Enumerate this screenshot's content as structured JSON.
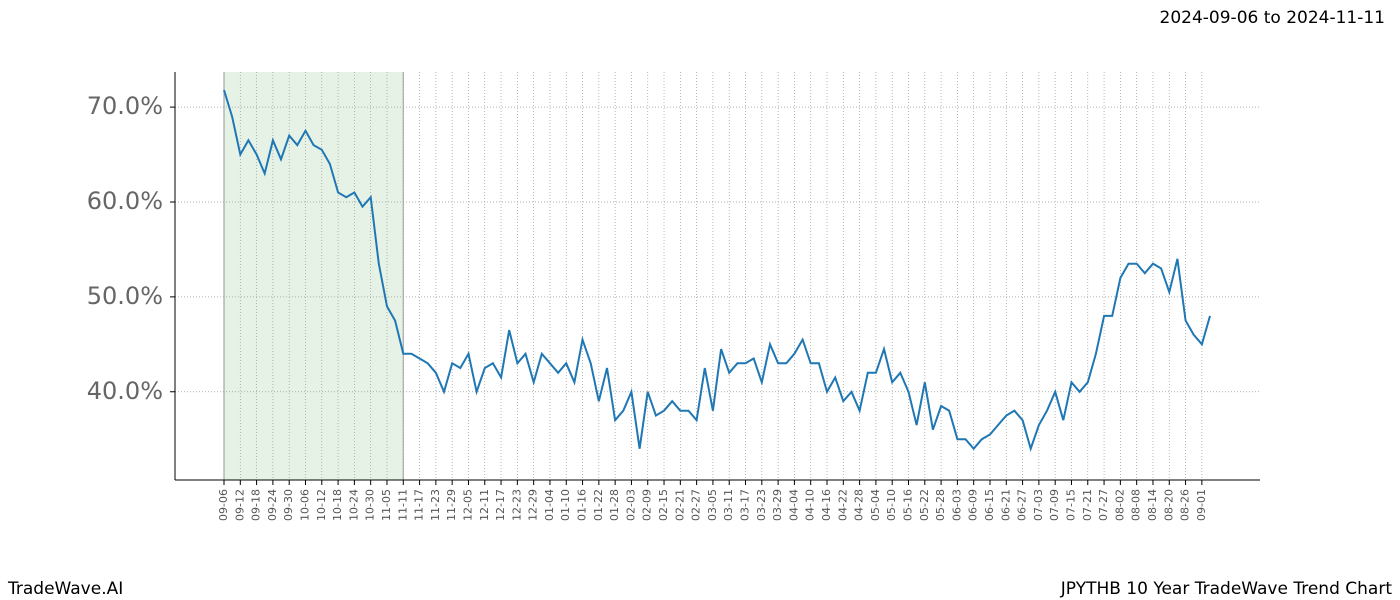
{
  "chart_data": {
    "type": "line",
    "title": "JPYTHB 10 Year TradeWave Trend Chart",
    "subtitle": "2024-09-06 to 2024-11-11",
    "source": "TradeWave.AI",
    "highlight": [
      "09-06",
      "11-11"
    ],
    "highlight_color": "#e6f2e6",
    "grid": true,
    "categories": [
      "09-06",
      null,
      "09-12",
      null,
      "09-18",
      null,
      "09-24",
      null,
      "09-30",
      null,
      "10-06",
      null,
      "10-12",
      null,
      "10-18",
      null,
      "10-24",
      null,
      "10-30",
      null,
      "11-05",
      null,
      "11-11",
      null,
      "11-17",
      null,
      "11-23",
      null,
      "11-29",
      null,
      "12-05",
      null,
      "12-11",
      null,
      "12-17",
      null,
      "12-23",
      null,
      "12-29",
      null,
      "01-04",
      null,
      "01-10",
      null,
      "01-16",
      null,
      "01-22",
      null,
      "01-28",
      null,
      "02-03",
      null,
      "02-09",
      null,
      "02-15",
      null,
      "02-21",
      null,
      "02-27",
      null,
      "03-05",
      null,
      "03-11",
      null,
      "03-17",
      null,
      "03-23",
      null,
      "03-29",
      null,
      "04-04",
      null,
      "04-10",
      null,
      "04-16",
      null,
      "04-22",
      null,
      "04-28",
      null,
      "05-04",
      null,
      "05-10",
      null,
      "05-16",
      null,
      "05-22",
      null,
      "05-28",
      null,
      "06-03",
      null,
      "06-09",
      null,
      "06-15",
      null,
      "06-21",
      null,
      "06-27",
      null,
      "07-03",
      null,
      "07-09",
      null,
      "07-15",
      null,
      "07-21",
      null,
      "07-27",
      null,
      "08-02",
      null,
      "08-08",
      null,
      "08-14",
      null,
      "08-20",
      null,
      "08-26",
      null,
      "09-01",
      null
    ],
    "series": [
      {
        "name": "JPYTHB",
        "color": "#1f77b4",
        "values": [
          71.8,
          69,
          65,
          66.5,
          65,
          63,
          66.5,
          64.5,
          67,
          66,
          67.5,
          66,
          65.5,
          64,
          61,
          60.5,
          61,
          59.5,
          60.5,
          53.5,
          49,
          47.5,
          44,
          44,
          43.5,
          43,
          42,
          40,
          43,
          42.5,
          44,
          40,
          42.5,
          43,
          41.5,
          46.5,
          43,
          44,
          41,
          44,
          43,
          42,
          43,
          41,
          45.5,
          43,
          39,
          42.5,
          37,
          38,
          40,
          34,
          40,
          37.5,
          38,
          39,
          38,
          38,
          37,
          42.5,
          38,
          44.5,
          42,
          43,
          43,
          43.5,
          41,
          45,
          43,
          43,
          44,
          45.5,
          43,
          43,
          40,
          41.5,
          39,
          40,
          38,
          42,
          42,
          44.5,
          41,
          42,
          40,
          36.5,
          41,
          36,
          38.5,
          38,
          35,
          35,
          34,
          35,
          35.5,
          36.5,
          37.5,
          38,
          37,
          34,
          36.5,
          38,
          40,
          37,
          41,
          40,
          41,
          44,
          48,
          48,
          52,
          53.5,
          53.5,
          52.5,
          53.5,
          53,
          50.5,
          54,
          47.5,
          46,
          45,
          48
        ]
      }
    ],
    "ylim": [
      30.7,
      73.7
    ],
    "yticks": [
      {
        "value": 40,
        "label": "40.0%"
      },
      {
        "value": 50,
        "label": "50.0%"
      },
      {
        "value": 60,
        "label": "60.0%"
      },
      {
        "value": 70,
        "label": "70.0%"
      }
    ]
  }
}
